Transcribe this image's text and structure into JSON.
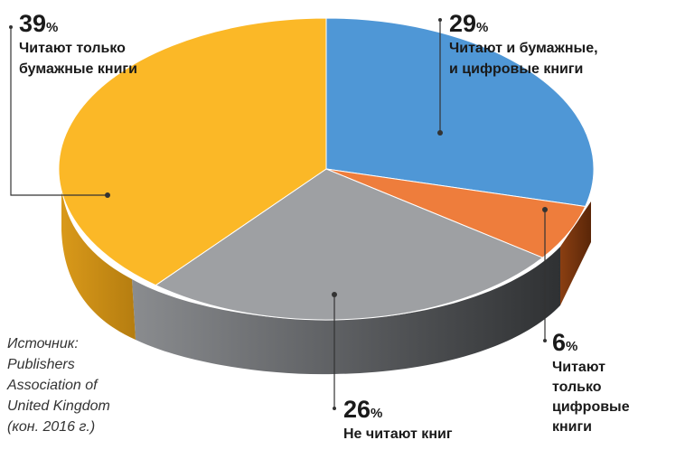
{
  "chart_data": {
    "type": "pie",
    "slices": [
      {
        "value": 29,
        "percent_label": "29",
        "description": [
          "Читают и бумажные,",
          "и цифровые книги"
        ],
        "color": "#4f97d6"
      },
      {
        "value": 6,
        "percent_label": "6",
        "description": [
          "Читают",
          "только",
          "цифровые",
          "книги"
        ],
        "color": "#ee7d3c"
      },
      {
        "value": 26,
        "percent_label": "26",
        "description": [
          "Не читают книг"
        ],
        "color": "#9ea0a3"
      },
      {
        "value": 39,
        "percent_label": "39",
        "description": [
          "Читают только",
          "бумажные книги"
        ],
        "color": "#fbb827"
      }
    ],
    "percent_sign": "%",
    "source": [
      "Источник:",
      "Publishers",
      "Association of",
      "United Kingdom",
      "(кон. 2016 г.)"
    ],
    "style": "3d-pie"
  }
}
